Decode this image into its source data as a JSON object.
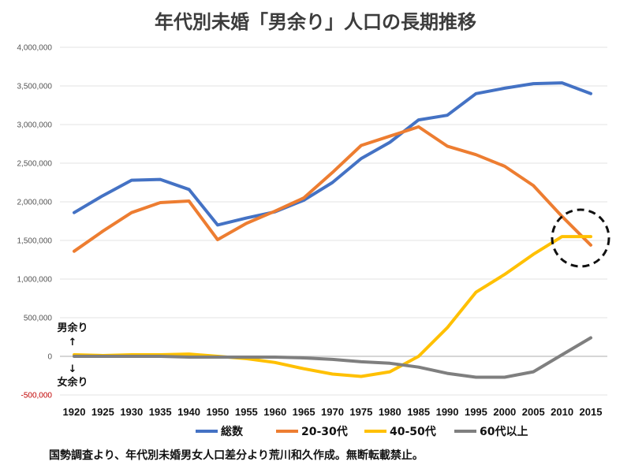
{
  "chart_data": {
    "type": "line",
    "title": "年代別未婚「男余り」人口の長期推移",
    "x": [
      "1920",
      "1925",
      "1930",
      "1935",
      "1940",
      "1950",
      "1955",
      "1960",
      "1965",
      "1970",
      "1975",
      "1980",
      "1985",
      "1990",
      "1995",
      "2000",
      "2005",
      "2010",
      "2015"
    ],
    "ylim": [
      -500000,
      4000000
    ],
    "yticks": [
      -500000,
      0,
      500000,
      1000000,
      1500000,
      2000000,
      2500000,
      3000000,
      3500000,
      4000000
    ],
    "ytick_labels": [
      "-500,000",
      "0",
      "500,000",
      "1,000,000",
      "1,500,000",
      "2,000,000",
      "2,500,000",
      "3,000,000",
      "3,500,000",
      "4,000,000"
    ],
    "grid": true,
    "legend_position": "bottom",
    "series": [
      {
        "name": "総数",
        "color": "#4472c4",
        "values": [
          1860000,
          2080000,
          2280000,
          2290000,
          2160000,
          1700000,
          1790000,
          1870000,
          2020000,
          2250000,
          2560000,
          2770000,
          3060000,
          3120000,
          3400000,
          3470000,
          3530000,
          3540000,
          3400000
        ]
      },
      {
        "name": "20-30代",
        "color": "#ed7d31",
        "values": [
          1360000,
          1620000,
          1860000,
          1990000,
          2010000,
          1510000,
          1720000,
          1880000,
          2050000,
          2380000,
          2730000,
          2850000,
          2970000,
          2720000,
          2610000,
          2460000,
          2210000,
          1810000,
          1440000
        ]
      },
      {
        "name": "40-50代",
        "color": "#ffc000",
        "values": [
          20000,
          10000,
          20000,
          20000,
          30000,
          0,
          -30000,
          -80000,
          -160000,
          -230000,
          -260000,
          -200000,
          0,
          370000,
          830000,
          1060000,
          1320000,
          1550000,
          1550000
        ]
      },
      {
        "name": "60代以上",
        "color": "#7f7f7f",
        "values": [
          0,
          0,
          0,
          0,
          -10000,
          -10000,
          -10000,
          -10000,
          -20000,
          -40000,
          -70000,
          -90000,
          -140000,
          -220000,
          -270000,
          -270000,
          -200000,
          20000,
          240000
        ]
      }
    ],
    "annotations": {
      "male_surplus": "男余り",
      "female_surplus": "女余り",
      "arrow_up": "↑",
      "arrow_down": "↓"
    }
  },
  "source_note": "国勢調査より、年代別未婚男女人口差分より荒川和久作成。無断転載禁止。"
}
